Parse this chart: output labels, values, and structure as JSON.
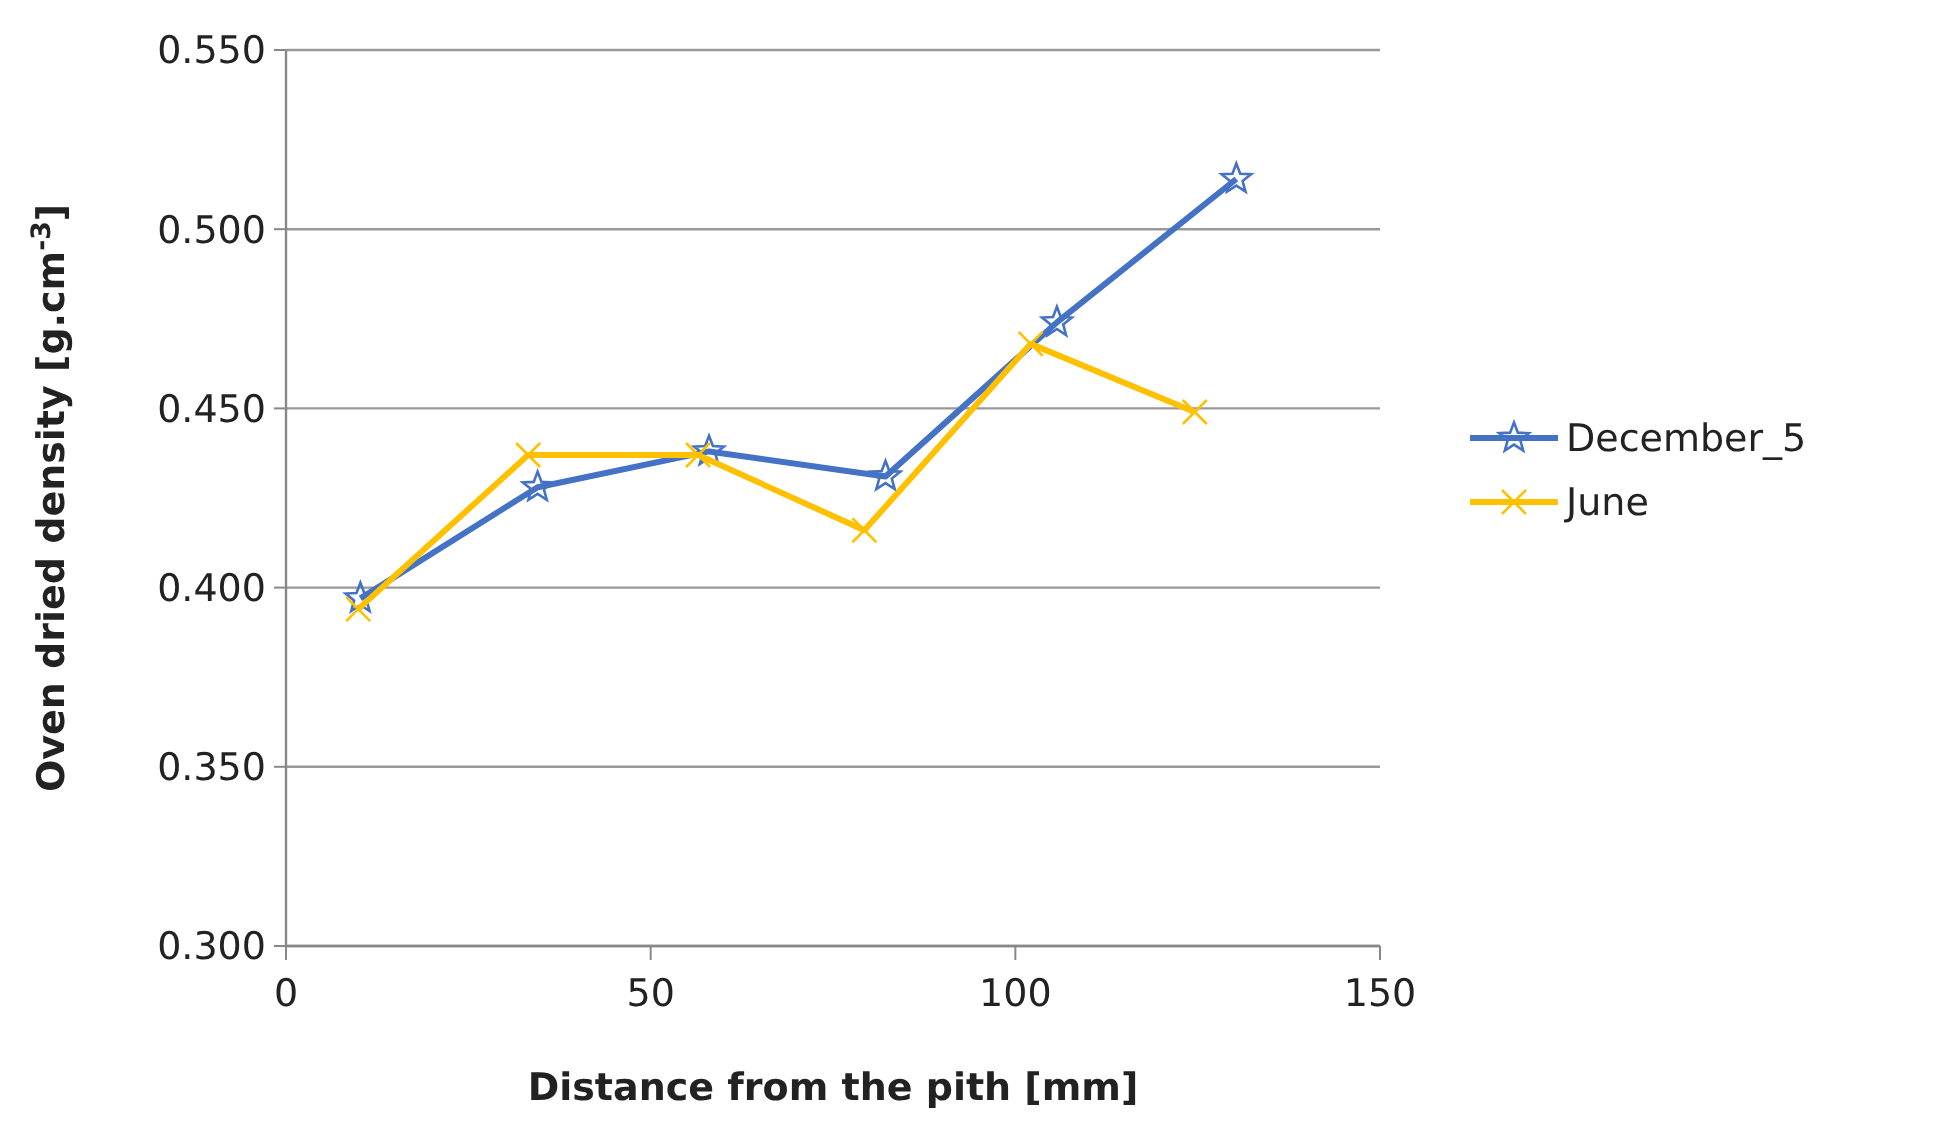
{
  "chart_data": {
    "type": "line",
    "xlabel": "Distance from the pith [mm]",
    "ylabel": "Oven dried density [g.cm$^{-3}$]",
    "xlim": [
      0,
      150
    ],
    "xticks": [
      0,
      50,
      100,
      150
    ],
    "ylim": [
      0.3,
      0.55
    ],
    "yticks": [
      {
        "value": 0.3,
        "label": "0.300"
      },
      {
        "value": 0.35,
        "label": "0.350"
      },
      {
        "value": 0.4,
        "label": "0.400"
      },
      {
        "value": 0.45,
        "label": "0.450"
      },
      {
        "value": 0.5,
        "label": "0.500"
      },
      {
        "value": 0.55,
        "label": "0.550"
      }
    ],
    "grid": "y",
    "legend": "right",
    "line_style": "solid",
    "series": [
      {
        "name": "December_5",
        "color": "#4472c4",
        "marker": "star",
        "x": [
          10.2,
          34.5,
          58,
          82.2,
          105.7,
          130.3
        ],
        "values": [
          0.397,
          0.428,
          0.438,
          0.431,
          0.474,
          0.514
        ]
      },
      {
        "name": "June",
        "color": "#ffc000",
        "marker": "cross",
        "x": [
          9.9,
          33.2,
          56.5,
          79.3,
          102.1,
          124.6
        ],
        "values": [
          0.394,
          0.437,
          0.437,
          0.416,
          0.468,
          0.449
        ]
      }
    ]
  }
}
